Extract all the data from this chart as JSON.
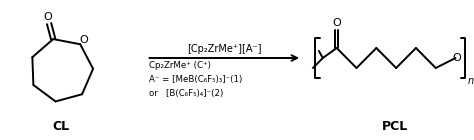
{
  "bg_color": "#ffffff",
  "text_color": "#000000",
  "cl_label": "CL",
  "pcl_label": "PCL",
  "arrow_above": "[Cp₂ZrMe⁺][A⁻]",
  "line1": "Cp₂ZrMe⁺ (C⁺)",
  "line2": "A⁻ = [MeB(C₆F₅)₃]⁻(1)",
  "line3": "or   [B(C₆F₅)₄]⁻(2)",
  "fig_width": 4.74,
  "fig_height": 1.4,
  "dpi": 100
}
